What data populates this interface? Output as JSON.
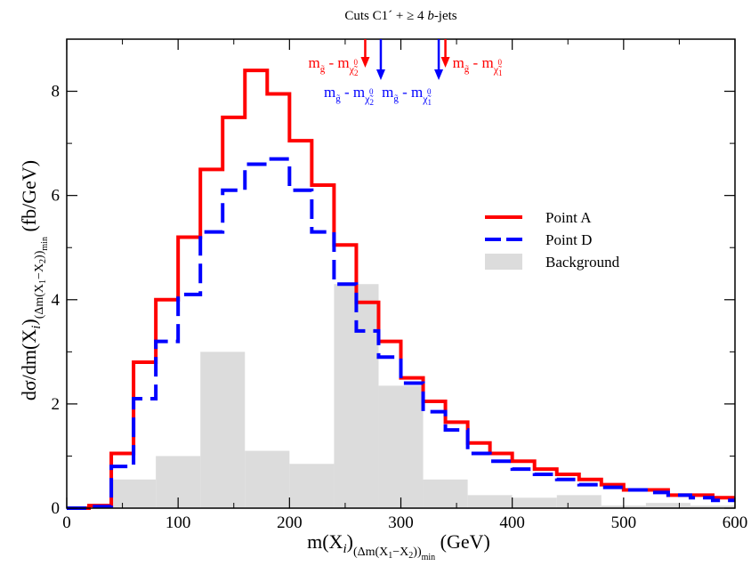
{
  "chart_data": {
    "type": "line",
    "title": "Cuts C1´ + ≥ 4 b-jets",
    "xlabel": "m(X_i)_(Δm(X_1−X_2))_min (GeV)",
    "ylabel": "dσ/dm(X_i)_(Δm(X_1−X_2))_min (fb/GeV)",
    "xlim": [
      0,
      600
    ],
    "ylim": [
      0,
      9
    ],
    "x_ticks": [
      "0",
      "100",
      "200",
      "300",
      "400",
      "500",
      "600"
    ],
    "y_ticks": [
      "0",
      "2",
      "4",
      "6",
      "8"
    ],
    "grid": false,
    "legend_position": "right",
    "bin_edges": [
      0,
      20,
      40,
      60,
      80,
      100,
      120,
      140,
      160,
      180,
      200,
      220,
      240,
      260,
      280,
      300,
      320,
      340,
      360,
      380,
      400,
      420,
      440,
      460,
      480,
      500,
      520,
      540,
      560,
      580,
      600
    ],
    "series": [
      {
        "name": "Point A",
        "color": "#ff0000",
        "style": "solid-step",
        "values": [
          0.0,
          0.05,
          1.05,
          2.8,
          4.0,
          5.2,
          6.5,
          7.5,
          8.4,
          7.95,
          7.05,
          6.2,
          5.05,
          3.95,
          3.2,
          2.5,
          2.05,
          1.65,
          1.25,
          1.05,
          0.9,
          0.75,
          0.65,
          0.55,
          0.45,
          0.35,
          0.35,
          0.25,
          0.25,
          0.2
        ]
      },
      {
        "name": "Point D",
        "color": "#0000ff",
        "style": "dashed-step",
        "values": [
          0.0,
          0.03,
          0.8,
          2.1,
          3.2,
          4.1,
          5.3,
          6.1,
          6.6,
          6.7,
          6.1,
          5.3,
          4.3,
          3.4,
          2.9,
          2.4,
          1.85,
          1.5,
          1.05,
          0.9,
          0.75,
          0.65,
          0.55,
          0.45,
          0.4,
          0.35,
          0.3,
          0.25,
          0.2,
          0.15
        ]
      },
      {
        "name": "Background",
        "color": "#dcdcdc",
        "style": "filled-hist",
        "edges": [
          0,
          40,
          80,
          120,
          160,
          200,
          240,
          280,
          320,
          360,
          400,
          440,
          480,
          520,
          560,
          600
        ],
        "values": [
          0.0,
          0.55,
          1.0,
          3.0,
          1.1,
          0.85,
          4.3,
          2.35,
          0.55,
          0.25,
          0.2,
          0.25,
          0.05,
          0.1,
          0.05
        ]
      }
    ],
    "annotations": [
      {
        "x": 268,
        "color": "#ff0000",
        "label_main": "m",
        "label_sub1": "g̃",
        "label_sep": " - m",
        "label_sub2": "χ̃",
        "label_sup": "0",
        "label_idx": "2"
      },
      {
        "x": 282,
        "color": "#0000ff",
        "label_main": "m",
        "label_sub1": "g̃",
        "label_sep": " - m",
        "label_sub2": "χ̃",
        "label_sup": "0",
        "label_idx": "2"
      },
      {
        "x": 334,
        "color": "#0000ff",
        "label_main": "m",
        "label_sub1": "g̃",
        "label_sep": " - m",
        "label_sub2": "χ̃",
        "label_sup": "0",
        "label_idx": "1"
      },
      {
        "x": 340,
        "color": "#ff0000",
        "label_main": "m",
        "label_sub1": "g̃",
        "label_sep": " - m",
        "label_sub2": "χ̃",
        "label_sup": "0",
        "label_idx": "1"
      }
    ]
  }
}
